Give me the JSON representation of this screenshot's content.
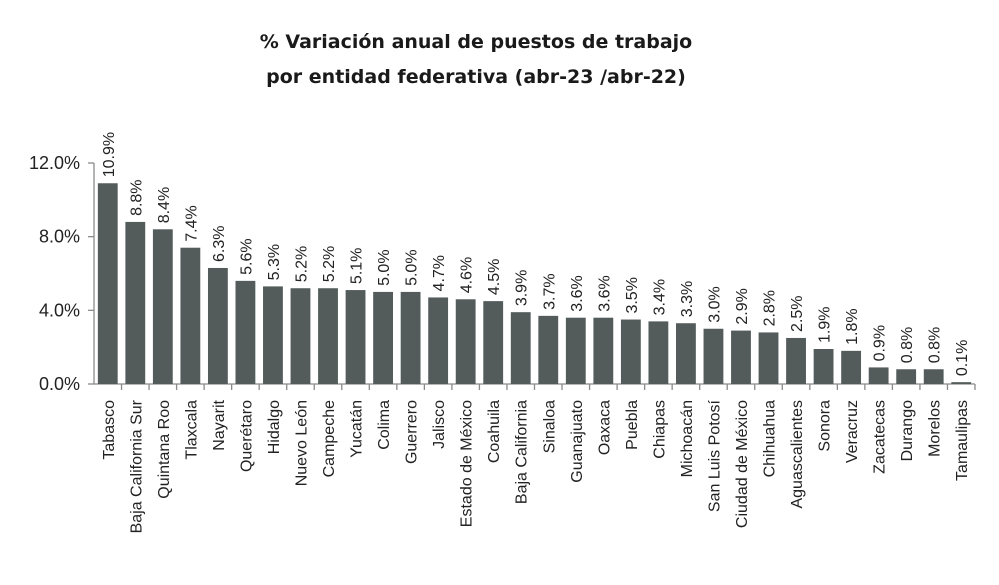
{
  "chart_data": {
    "type": "bar",
    "title": [
      "% Variación anual de puestos de trabajo",
      "por entidad federativa (abr-23 /abr-22)"
    ],
    "xlabel": "",
    "ylabel": "",
    "ylim": [
      0,
      12
    ],
    "yticks": [
      "0.0%",
      "4.0%",
      "8.0%",
      "12.0%"
    ],
    "ytick_values": [
      0,
      4,
      8,
      12
    ],
    "bar_color": "#535b5b",
    "categories": [
      "Tabasco",
      "Baja California Sur",
      "Quintana Roo",
      "Tlaxcala",
      "Nayarit",
      "Querétaro",
      "Hidalgo",
      "Nuevo León",
      "Campeche",
      "Yucatán",
      "Colima",
      "Guerrero",
      "Jalisco",
      "Estado de México",
      "Coahuila",
      "Baja California",
      "Sinaloa",
      "Guanajuato",
      "Oaxaca",
      "Puebla",
      "Chiapas",
      "Michoacán",
      "San Luis Potosí",
      "Ciudad de México",
      "Chihuahua",
      "Aguascalientes",
      "Sonora",
      "Veracruz",
      "Zacatecas",
      "Durango",
      "Morelos",
      "Tamaulipas"
    ],
    "values": [
      10.9,
      8.8,
      8.4,
      7.4,
      6.3,
      5.6,
      5.3,
      5.2,
      5.2,
      5.1,
      5.0,
      5.0,
      4.7,
      4.6,
      4.5,
      3.9,
      3.7,
      3.6,
      3.6,
      3.5,
      3.4,
      3.3,
      3.0,
      2.9,
      2.8,
      2.5,
      1.9,
      1.8,
      0.9,
      0.8,
      0.8,
      0.1
    ],
    "data_labels": [
      "10.9%",
      "8.8%",
      "8.4%",
      "7.4%",
      "6.3%",
      "5.6%",
      "5.3%",
      "5.2%",
      "5.2%",
      "5.1%",
      "5.0%",
      "5.0%",
      "4.7%",
      "4.6%",
      "4.5%",
      "3.9%",
      "3.7%",
      "3.6%",
      "3.6%",
      "3.5%",
      "3.4%",
      "3.3%",
      "3.0%",
      "2.9%",
      "2.8%",
      "2.5%",
      "1.9%",
      "1.8%",
      "0.9%",
      "0.8%",
      "0.8%",
      "0.1%"
    ],
    "grid": false,
    "legend": "none"
  }
}
